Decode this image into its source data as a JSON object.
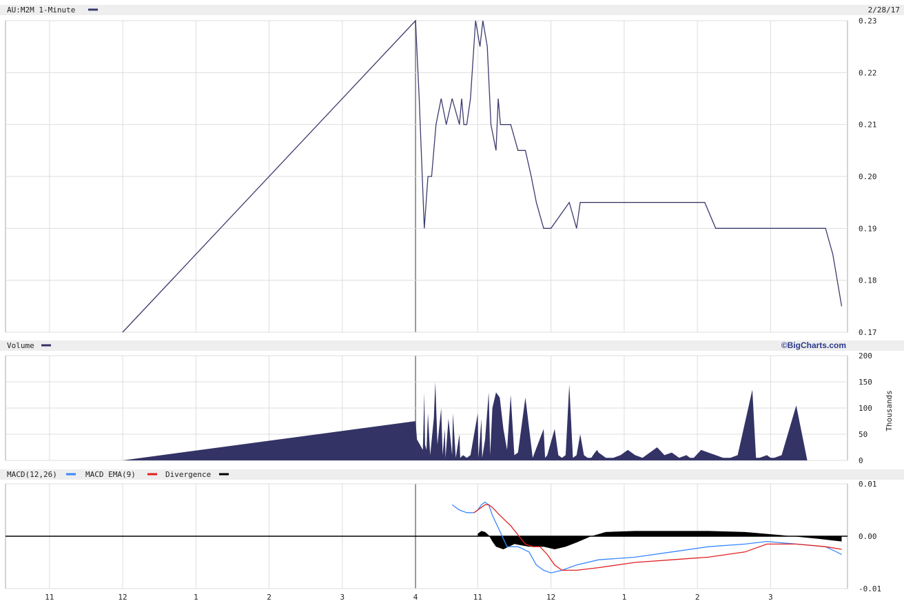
{
  "price_panel": {
    "title": "AU:M2M 1-Minute",
    "date": "2/28/17",
    "ylim": [
      0.17,
      0.23
    ],
    "y_ticks": [
      "0.23",
      "0.22",
      "0.21",
      "0.20",
      "0.19",
      "0.18",
      "0.17"
    ],
    "line_color": "#3a3a6e"
  },
  "volume_panel": {
    "title": "Volume",
    "brand": "©BigCharts.com",
    "unit_label": "Thousands",
    "ylim": [
      0,
      200
    ],
    "y_ticks": [
      "200",
      "150",
      "100",
      "50",
      "0"
    ],
    "fill_color": "#333366"
  },
  "macd_panel": {
    "title_macd": "MACD(12,26)",
    "title_ema": "MACD EMA(9)",
    "title_div": "Divergence",
    "ylim": [
      -0.01,
      0.01
    ],
    "y_ticks": [
      "0.01",
      "0.00",
      "-0.01"
    ],
    "macd_color": "#3a86ff",
    "ema_color": "#e02020",
    "div_color": "#000000"
  },
  "x_axis": {
    "ticks": [
      "11",
      "12",
      "1",
      "2",
      "3",
      "4",
      "11",
      "12",
      "1",
      "2",
      "3"
    ],
    "tick_positions": [
      0,
      1,
      2,
      3,
      4,
      5,
      5.85,
      6.85,
      7.85,
      8.85,
      9.85
    ],
    "domain": [
      -0.6,
      10.9
    ]
  },
  "chart_data": [
    {
      "type": "line",
      "title": "AU:M2M 1-Minute",
      "ylabel": "",
      "ylim": [
        0.17,
        0.23
      ],
      "x": [
        1.0,
        5.0,
        5.05,
        5.12,
        5.17,
        5.22,
        5.28,
        5.35,
        5.42,
        5.5,
        5.6,
        5.63,
        5.66,
        5.7,
        5.75,
        5.82,
        5.88,
        5.92,
        5.98,
        6.03,
        6.1,
        6.13,
        6.16,
        6.2,
        6.25,
        6.3,
        6.4,
        6.5,
        6.58,
        6.65,
        6.75,
        6.85,
        7.1,
        7.2,
        7.25,
        7.3,
        7.95,
        8.05,
        8.9,
        8.95,
        9.1,
        10.6,
        10.7,
        10.82
      ],
      "y": [
        0.17,
        0.23,
        0.215,
        0.19,
        0.2,
        0.2,
        0.21,
        0.215,
        0.21,
        0.215,
        0.21,
        0.215,
        0.21,
        0.21,
        0.215,
        0.23,
        0.225,
        0.23,
        0.225,
        0.21,
        0.205,
        0.215,
        0.21,
        0.21,
        0.21,
        0.21,
        0.205,
        0.205,
        0.2,
        0.195,
        0.19,
        0.19,
        0.195,
        0.19,
        0.195,
        0.195,
        0.195,
        0.195,
        0.195,
        0.195,
        0.19,
        0.19,
        0.185,
        0.175
      ]
    },
    {
      "type": "area",
      "title": "Volume",
      "ylabel": "Thousands",
      "ylim": [
        0,
        200
      ],
      "x": [
        1.0,
        5.0,
        5.02,
        5.1,
        5.12,
        5.13,
        5.15,
        5.17,
        5.2,
        5.25,
        5.27,
        5.3,
        5.35,
        5.37,
        5.4,
        5.41,
        5.45,
        5.5,
        5.51,
        5.55,
        5.6,
        5.61,
        5.65,
        5.7,
        5.75,
        5.85,
        5.86,
        5.9,
        5.91,
        5.95,
        6.0,
        6.02,
        6.05,
        6.1,
        6.15,
        6.2,
        6.25,
        6.3,
        6.35,
        6.4,
        6.5,
        6.6,
        6.75,
        6.77,
        6.8,
        6.9,
        6.95,
        7.0,
        7.05,
        7.1,
        7.15,
        7.2,
        7.25,
        7.3,
        7.35,
        7.4,
        7.45,
        7.48,
        7.5,
        7.55,
        7.6,
        7.7,
        7.8,
        7.9,
        8.0,
        8.1,
        8.2,
        8.3,
        8.4,
        8.5,
        8.6,
        8.7,
        8.75,
        8.8,
        8.9,
        9.0,
        9.1,
        9.2,
        9.3,
        9.4,
        9.6,
        9.65,
        9.7,
        9.8,
        9.85,
        9.9,
        10.0,
        10.2,
        10.35,
        10.5,
        10.65,
        10.75,
        10.82
      ],
      "y": [
        0,
        75,
        40,
        20,
        130,
        30,
        20,
        90,
        10,
        80,
        150,
        30,
        100,
        10,
        60,
        5,
        80,
        10,
        90,
        5,
        50,
        5,
        10,
        5,
        10,
        90,
        5,
        80,
        5,
        40,
        130,
        10,
        100,
        130,
        120,
        60,
        20,
        125,
        10,
        15,
        120,
        5,
        60,
        5,
        10,
        60,
        10,
        5,
        10,
        145,
        5,
        10,
        50,
        10,
        5,
        5,
        15,
        20,
        15,
        10,
        5,
        5,
        10,
        20,
        10,
        5,
        15,
        25,
        10,
        15,
        5,
        10,
        5,
        5,
        20,
        15,
        10,
        5,
        5,
        10,
        135,
        5,
        5,
        10,
        5,
        5,
        10,
        105,
        0,
        0,
        0,
        0,
        0
      ]
    },
    {
      "type": "line",
      "title": "MACD(12,26)",
      "ylim": [
        -0.01,
        0.01
      ],
      "series": [
        {
          "name": "MACD(12,26)",
          "x": [
            5.5,
            5.6,
            5.7,
            5.8,
            5.85,
            5.9,
            5.95,
            6.0,
            6.05,
            6.15,
            6.25,
            6.4,
            6.55,
            6.65,
            6.75,
            6.85,
            7.0,
            7.2,
            7.5,
            8.0,
            8.5,
            9.0,
            9.5,
            9.8,
            10.2,
            10.6,
            10.75,
            10.82
          ],
          "y": [
            0.006,
            0.005,
            0.0045,
            0.0045,
            0.005,
            0.006,
            0.0065,
            0.006,
            0.004,
            0.001,
            -0.002,
            -0.002,
            -0.003,
            -0.0055,
            -0.0065,
            -0.007,
            -0.0065,
            -0.0055,
            -0.0045,
            -0.004,
            -0.003,
            -0.002,
            -0.0015,
            -0.001,
            -0.0015,
            -0.002,
            -0.003,
            -0.0035
          ]
        },
        {
          "name": "MACD EMA(9)",
          "x": [
            5.8,
            5.85,
            5.9,
            5.95,
            6.0,
            6.05,
            6.15,
            6.3,
            6.5,
            6.6,
            6.7,
            6.8,
            6.9,
            7.0,
            7.2,
            7.5,
            8.0,
            8.5,
            9.0,
            9.5,
            9.8,
            10.2,
            10.6,
            10.82
          ],
          "y": [
            0.0045,
            0.005,
            0.0055,
            0.006,
            0.006,
            0.0055,
            0.004,
            0.002,
            -0.0015,
            -0.002,
            -0.002,
            -0.0035,
            -0.0055,
            -0.0065,
            -0.0065,
            -0.006,
            -0.005,
            -0.0045,
            -0.004,
            -0.003,
            -0.0015,
            -0.0015,
            -0.002,
            -0.0025
          ]
        }
      ]
    },
    {
      "type": "area",
      "title": "Divergence",
      "ylim": [
        -0.01,
        0.01
      ],
      "x": [
        5.85,
        5.9,
        5.95,
        6.0,
        6.05,
        6.1,
        6.2,
        6.35,
        6.55,
        6.75,
        6.9,
        7.05,
        7.2,
        7.4,
        7.6,
        8.0,
        8.5,
        9.0,
        9.5,
        10.0,
        10.5,
        10.82
      ],
      "y": [
        0.0005,
        0.001,
        0.0008,
        0.0002,
        -0.001,
        -0.002,
        -0.0025,
        -0.0015,
        -0.002,
        -0.002,
        -0.0025,
        -0.002,
        -0.0012,
        0.0,
        0.0008,
        0.001,
        0.001,
        0.001,
        0.0008,
        0.0002,
        -0.0005,
        -0.001
      ]
    }
  ]
}
